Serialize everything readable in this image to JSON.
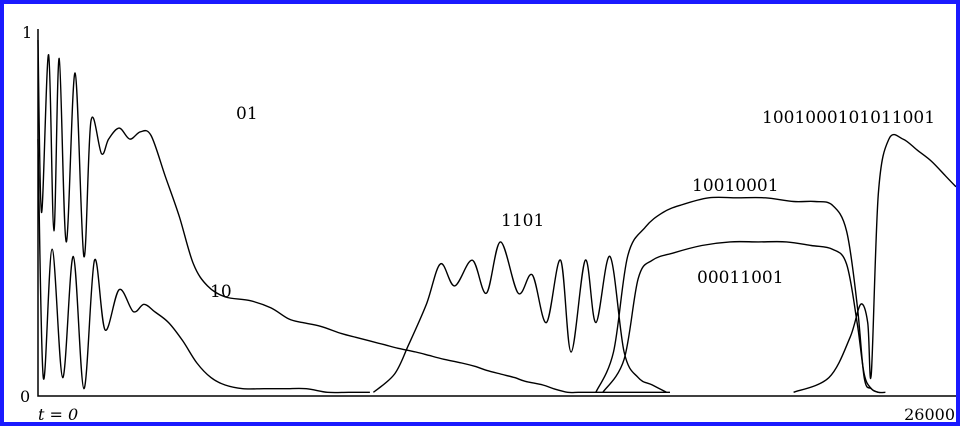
{
  "chart_data": {
    "type": "line",
    "title": "",
    "xlabel": "",
    "ylabel": "",
    "xlim": [
      0,
      26000
    ],
    "ylim": [
      0,
      1
    ],
    "grid": false,
    "legend": "none",
    "x_tick_labels": {
      "start": "t = 0",
      "end": "26000"
    },
    "y_tick_labels": {
      "top": "1",
      "bottom": "0"
    },
    "series": [
      {
        "name": "01",
        "x": [
          0,
          100,
          300,
          450,
          600,
          800,
          1050,
          1300,
          1500,
          1800,
          2000,
          2300,
          2600,
          2900,
          3200,
          3600,
          4000,
          4400,
          4800,
          5300,
          6000,
          6600,
          7100,
          7500,
          8000,
          8600,
          9000,
          9400,
          9800,
          10200,
          10700,
          11100,
          11500,
          12000,
          12400,
          12700,
          13100,
          13500,
          13800,
          14300,
          14600,
          15000,
          15300,
          15600,
          15900,
          16200,
          16500,
          16800,
          17100,
          17300,
          17600,
          17900
        ],
        "y": [
          0.97,
          0.5,
          0.93,
          0.45,
          0.92,
          0.42,
          0.88,
          0.38,
          0.75,
          0.66,
          0.7,
          0.73,
          0.7,
          0.72,
          0.71,
          0.6,
          0.49,
          0.36,
          0.3,
          0.27,
          0.26,
          0.24,
          0.21,
          0.2,
          0.19,
          0.17,
          0.16,
          0.15,
          0.14,
          0.13,
          0.12,
          0.11,
          0.1,
          0.09,
          0.08,
          0.07,
          0.06,
          0.05,
          0.04,
          0.03,
          0.02,
          0.01,
          0.01,
          0.01,
          0.01,
          0.01,
          0.01,
          0.01,
          0.01,
          0.01,
          0.01,
          0.01
        ]
      },
      {
        "name": "10",
        "x": [
          0,
          150,
          400,
          700,
          1000,
          1300,
          1600,
          1900,
          2300,
          2700,
          3000,
          3300,
          3700,
          4100,
          4500,
          4900,
          5300,
          5800,
          6400,
          7000,
          7600,
          8200,
          8800,
          9400
        ],
        "y": [
          0.7,
          0.05,
          0.4,
          0.05,
          0.38,
          0.02,
          0.37,
          0.18,
          0.29,
          0.23,
          0.25,
          0.23,
          0.2,
          0.15,
          0.09,
          0.05,
          0.03,
          0.02,
          0.02,
          0.02,
          0.02,
          0.01,
          0.01,
          0.01
        ]
      },
      {
        "name": "1101",
        "x": [
          9500,
          10100,
          10500,
          11000,
          11400,
          11800,
          12300,
          12700,
          13100,
          13600,
          14000,
          14400,
          14800,
          15100,
          15500,
          15800,
          16200,
          16600,
          17000,
          17400,
          17800
        ],
        "y": [
          0.01,
          0.06,
          0.14,
          0.25,
          0.36,
          0.3,
          0.37,
          0.28,
          0.42,
          0.28,
          0.33,
          0.2,
          0.37,
          0.12,
          0.37,
          0.2,
          0.38,
          0.12,
          0.05,
          0.03,
          0.01
        ]
      },
      {
        "name": "10010001",
        "x": [
          15800,
          16300,
          16700,
          17200,
          17700,
          18200,
          19000,
          19800,
          20600,
          21400,
          22000,
          22500,
          22900,
          23200,
          23400,
          23600,
          23800,
          24000
        ],
        "y": [
          0.01,
          0.12,
          0.38,
          0.46,
          0.5,
          0.52,
          0.54,
          0.54,
          0.54,
          0.53,
          0.53,
          0.52,
          0.45,
          0.25,
          0.05,
          0.02,
          0.01,
          0.01
        ]
      },
      {
        "name": "00011001",
        "x": [
          16000,
          16600,
          17000,
          17400,
          18000,
          18800,
          19600,
          20400,
          21200,
          21900,
          22500,
          22900,
          23200,
          23400,
          23600,
          23800
        ],
        "y": [
          0.01,
          0.1,
          0.32,
          0.37,
          0.39,
          0.41,
          0.42,
          0.42,
          0.42,
          0.41,
          0.4,
          0.36,
          0.2,
          0.06,
          0.02,
          0.01
        ]
      },
      {
        "name": "1001000101011001",
        "x": [
          21400,
          22400,
          23000,
          23300,
          23500,
          23600,
          23800,
          24100,
          24500,
          24900,
          25300,
          25700,
          26000
        ],
        "y": [
          0.01,
          0.05,
          0.16,
          0.25,
          0.2,
          0.06,
          0.55,
          0.7,
          0.7,
          0.67,
          0.64,
          0.6,
          0.57
        ]
      }
    ],
    "series_labels": [
      "01",
      "10",
      "1101",
      "10010001",
      "00011001",
      "1001000101011001"
    ]
  }
}
